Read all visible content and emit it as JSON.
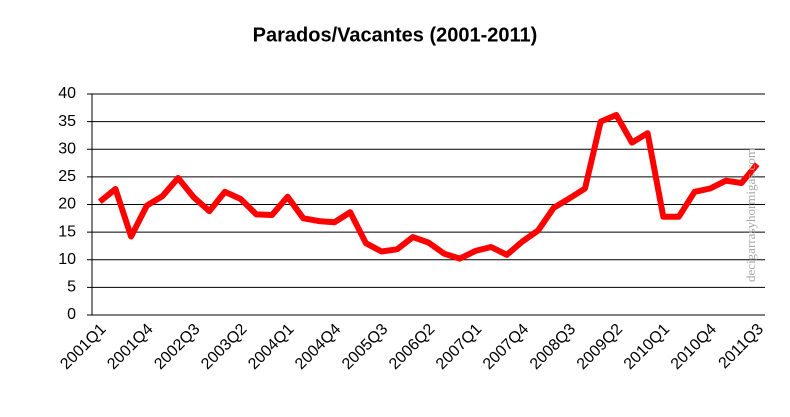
{
  "chart_data": {
    "type": "line",
    "title": "Parados/Vacantes (2001-2011)",
    "annotation": "decigarrasyhormigas.com",
    "categories": [
      "2001Q1",
      null,
      null,
      "2001Q4",
      null,
      null,
      "2002Q3",
      null,
      null,
      "2003Q2",
      null,
      null,
      "2004Q1",
      null,
      null,
      "2004Q4",
      null,
      null,
      "2005Q3",
      null,
      null,
      "2006Q2",
      null,
      null,
      "2007Q1",
      null,
      null,
      "2007Q4",
      null,
      null,
      "2008Q3",
      null,
      null,
      "2009Q2",
      null,
      null,
      "2010Q1",
      null,
      null,
      "2010Q4",
      null,
      null,
      "2011Q3"
    ],
    "values": [
      20.5,
      22.8,
      14.2,
      19.8,
      21.5,
      24.8,
      21.3,
      18.8,
      22.3,
      21,
      18.2,
      18.1,
      21.4,
      17.5,
      17,
      16.8,
      18.6,
      13,
      11.5,
      11.9,
      14.1,
      13.1,
      11.1,
      10.2,
      11.6,
      12.3,
      10.9,
      13.3,
      15.3,
      19.4,
      21.1,
      22.9,
      35,
      36.2,
      31.2,
      32.9,
      17.8,
      17.8,
      22.3,
      22.9,
      24.3,
      23.9,
      27.3
    ],
    "color": "#ff0000",
    "ylim": [
      0,
      40
    ],
    "yticks": [
      0,
      5,
      10,
      15,
      20,
      25,
      30,
      35,
      40
    ],
    "grid": true
  }
}
